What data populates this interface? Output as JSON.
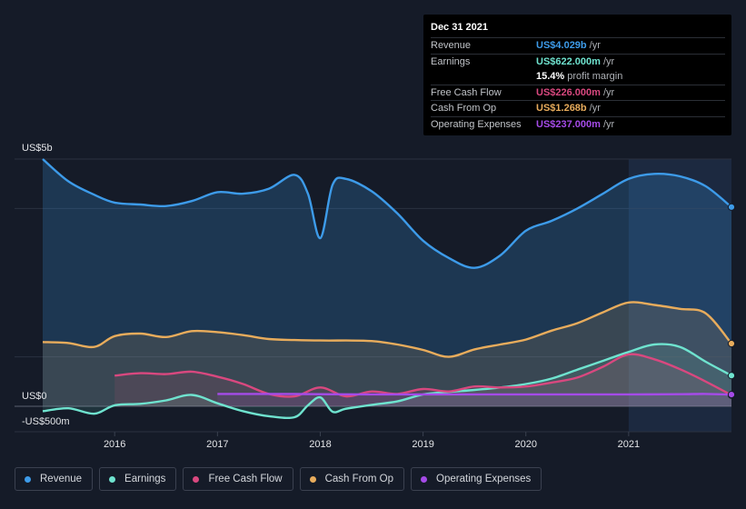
{
  "tooltip": {
    "date": "Dec 31 2021",
    "rows": [
      {
        "label": "Revenue",
        "value": "US$4.029b",
        "unit": "/yr",
        "color": "#3d9be9"
      },
      {
        "label": "Earnings",
        "value": "US$622.000m",
        "unit": "/yr",
        "color": "#6fe3cf"
      },
      {
        "label": "",
        "value": "15.4%",
        "unit": "profit margin",
        "color": "#ffffff"
      },
      {
        "label": "Free Cash Flow",
        "value": "US$226.000m",
        "unit": "/yr",
        "color": "#d9487f"
      },
      {
        "label": "Cash From Op",
        "value": "US$1.268b",
        "unit": "/yr",
        "color": "#e8ac5c"
      },
      {
        "label": "Operating Expenses",
        "value": "US$237.000m",
        "unit": "/yr",
        "color": "#a54be8"
      }
    ]
  },
  "legend": [
    {
      "label": "Revenue",
      "color": "#3d9be9"
    },
    {
      "label": "Earnings",
      "color": "#6fe3cf"
    },
    {
      "label": "Free Cash Flow",
      "color": "#d9487f"
    },
    {
      "label": "Cash From Op",
      "color": "#e8ac5c"
    },
    {
      "label": "Operating Expenses",
      "color": "#a54be8"
    }
  ],
  "chart_data": {
    "type": "area",
    "y_axis_labels": [
      "US$5b",
      "US$0",
      "-US$500m"
    ],
    "ylim": [
      -500,
      5000
    ],
    "xlim": [
      2015.3,
      2022.0
    ],
    "x_tick_labels": [
      "2016",
      "2017",
      "2018",
      "2019",
      "2020",
      "2021"
    ],
    "x_ticks": [
      2016,
      2017,
      2018,
      2019,
      2020,
      2021
    ],
    "highlight_start": 2021.0,
    "series": [
      {
        "name": "Revenue",
        "color": "#3d9be9",
        "x": [
          2015.3,
          2015.55,
          2015.8,
          2016.0,
          2016.25,
          2016.5,
          2016.75,
          2017.0,
          2017.25,
          2017.5,
          2017.75,
          2017.88,
          2018.0,
          2018.12,
          2018.25,
          2018.5,
          2018.75,
          2019.0,
          2019.25,
          2019.5,
          2019.75,
          2020.0,
          2020.25,
          2020.5,
          2020.75,
          2021.0,
          2021.25,
          2021.5,
          2021.75,
          2022.0
        ],
        "y": [
          5000,
          4550,
          4280,
          4120,
          4080,
          4050,
          4150,
          4330,
          4300,
          4400,
          4680,
          4300,
          3400,
          4480,
          4600,
          4350,
          3900,
          3350,
          3000,
          2800,
          3050,
          3550,
          3750,
          4000,
          4300,
          4600,
          4700,
          4650,
          4450,
          4029
        ]
      },
      {
        "name": "Earnings",
        "color": "#6fe3cf",
        "x": [
          2015.3,
          2015.55,
          2015.8,
          2016.0,
          2016.25,
          2016.5,
          2016.75,
          2017.0,
          2017.25,
          2017.5,
          2017.75,
          2017.88,
          2018.0,
          2018.12,
          2018.25,
          2018.5,
          2018.75,
          2019.0,
          2019.25,
          2019.5,
          2019.75,
          2020.0,
          2020.25,
          2020.5,
          2020.75,
          2021.0,
          2021.25,
          2021.5,
          2021.75,
          2022.0
        ],
        "y": [
          -100,
          -40,
          -150,
          20,
          50,
          120,
          230,
          60,
          -100,
          -200,
          -220,
          20,
          180,
          -110,
          -50,
          30,
          100,
          240,
          290,
          330,
          380,
          450,
          560,
          740,
          920,
          1100,
          1250,
          1200,
          900,
          622
        ]
      },
      {
        "name": "Free Cash Flow",
        "color": "#d9487f",
        "x": [
          2016.0,
          2016.25,
          2016.5,
          2016.75,
          2017.0,
          2017.25,
          2017.5,
          2017.75,
          2018.0,
          2018.25,
          2018.5,
          2018.75,
          2019.0,
          2019.25,
          2019.5,
          2019.75,
          2020.0,
          2020.25,
          2020.5,
          2020.75,
          2021.0,
          2021.25,
          2021.5,
          2021.75,
          2022.0
        ],
        "y": [
          620,
          670,
          650,
          700,
          600,
          450,
          250,
          200,
          380,
          200,
          300,
          250,
          350,
          300,
          400,
          380,
          400,
          480,
          580,
          800,
          1050,
          950,
          750,
          500,
          226
        ]
      },
      {
        "name": "Cash From Op",
        "color": "#e8ac5c",
        "x": [
          2015.3,
          2015.55,
          2015.8,
          2016.0,
          2016.25,
          2016.5,
          2016.75,
          2017.0,
          2017.25,
          2017.5,
          2017.75,
          2018.0,
          2018.25,
          2018.5,
          2018.75,
          2019.0,
          2019.25,
          2019.5,
          2019.75,
          2020.0,
          2020.25,
          2020.5,
          2020.75,
          2021.0,
          2021.25,
          2021.5,
          2021.75,
          2022.0
        ],
        "y": [
          1300,
          1280,
          1200,
          1420,
          1470,
          1400,
          1520,
          1500,
          1440,
          1360,
          1340,
          1330,
          1330,
          1320,
          1250,
          1140,
          1000,
          1150,
          1250,
          1350,
          1530,
          1680,
          1900,
          2100,
          2050,
          1970,
          1880,
          1268
        ]
      },
      {
        "name": "Operating Expenses",
        "color": "#a54be8",
        "x": [
          2017.0,
          2017.5,
          2018.0,
          2018.5,
          2019.0,
          2019.5,
          2020.0,
          2020.5,
          2021.0,
          2021.5,
          2021.75,
          2022.0
        ],
        "y": [
          250,
          250,
          245,
          240,
          240,
          240,
          240,
          240,
          240,
          245,
          250,
          237
        ]
      }
    ]
  }
}
